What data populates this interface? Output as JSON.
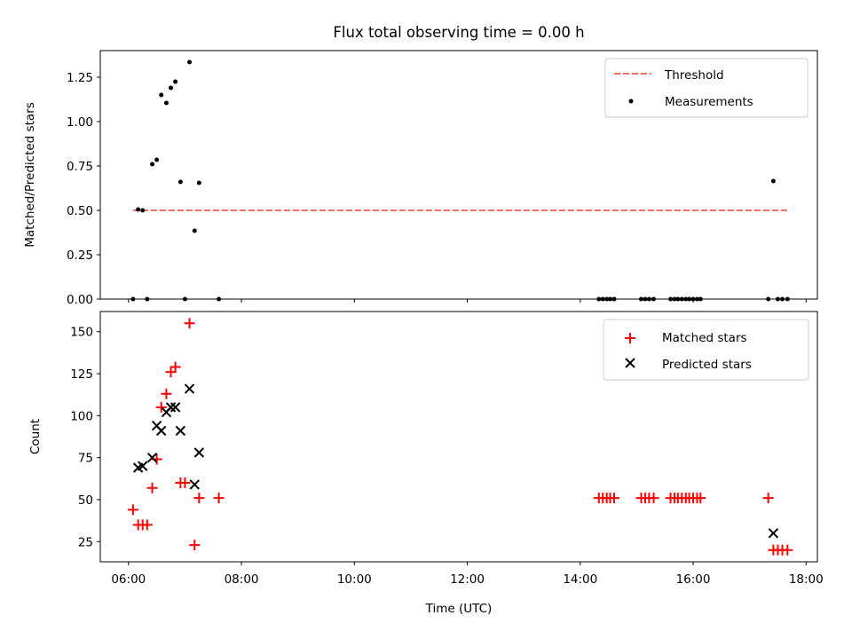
{
  "chart_data": [
    {
      "type": "scatter",
      "panel": "top",
      "title": "Flux total observing time = 0.00 h",
      "xlabel": "",
      "ylabel": "Matched/Predicted stars",
      "xlim": [
        5.5,
        18.2
      ],
      "ylim": [
        0,
        1.4
      ],
      "yticks": [
        0.0,
        0.25,
        0.5,
        0.75,
        1.0,
        1.25
      ],
      "ytick_labels": [
        "0.00",
        "0.25",
        "0.50",
        "0.75",
        "1.00",
        "1.25"
      ],
      "xticks": [
        6,
        8,
        10,
        12,
        14,
        16,
        18
      ],
      "grid": false,
      "legend_position": "upper right",
      "threshold": {
        "name": "Threshold",
        "color": "#ff6b6b",
        "y": 0.5,
        "x": [
          6.08,
          17.67
        ]
      },
      "series": [
        {
          "name": "Measurements",
          "color": "#000000",
          "x": [
            6.08,
            6.17,
            6.25,
            6.33,
            6.42,
            6.5,
            6.58,
            6.67,
            6.75,
            6.83,
            6.92,
            7.0,
            7.08,
            7.17,
            7.25,
            7.6,
            14.33,
            14.4,
            14.47,
            14.53,
            14.6,
            15.08,
            15.15,
            15.22,
            15.3,
            15.6,
            15.67,
            15.73,
            15.8,
            15.87,
            15.93,
            16.0,
            16.07,
            16.13,
            17.33,
            17.42,
            17.5,
            17.58,
            17.67
          ],
          "y": [
            0.0,
            0.505,
            0.5,
            0.0,
            0.76,
            0.785,
            1.15,
            1.105,
            1.19,
            1.225,
            0.66,
            0.0,
            1.335,
            0.385,
            0.655,
            0.0,
            0,
            0,
            0,
            0,
            0,
            0,
            0,
            0,
            0,
            0,
            0,
            0,
            0,
            0,
            0,
            0,
            0,
            0,
            0.0,
            0.665,
            0.0,
            0.0,
            0.0
          ]
        }
      ]
    },
    {
      "type": "scatter",
      "panel": "bottom",
      "title": "",
      "xlabel": "Time (UTC)",
      "ylabel": "Count",
      "xlim": [
        5.5,
        18.2
      ],
      "ylim": [
        13,
        162
      ],
      "yticks": [
        25,
        50,
        75,
        100,
        125,
        150
      ],
      "ytick_labels": [
        "25",
        "50",
        "75",
        "100",
        "125",
        "150"
      ],
      "xticks": [
        6,
        8,
        10,
        12,
        14,
        16,
        18
      ],
      "xtick_labels": [
        "06:00",
        "08:00",
        "10:00",
        "12:00",
        "14:00",
        "16:00",
        "18:00"
      ],
      "grid": false,
      "legend_position": "upper right",
      "series": [
        {
          "name": "Matched stars",
          "marker": "plus",
          "color": "#ff0000",
          "x": [
            6.08,
            6.17,
            6.25,
            6.33,
            6.42,
            6.5,
            6.58,
            6.67,
            6.75,
            6.83,
            6.92,
            7.0,
            7.08,
            7.17,
            7.25,
            7.6,
            14.33,
            14.4,
            14.47,
            14.53,
            14.6,
            15.08,
            15.15,
            15.22,
            15.3,
            15.6,
            15.67,
            15.73,
            15.8,
            15.87,
            15.93,
            16.0,
            16.07,
            16.13,
            17.33,
            17.42,
            17.5,
            17.58,
            17.67
          ],
          "y": [
            44,
            35,
            35,
            35,
            57,
            74,
            105,
            113,
            126,
            129,
            60,
            60,
            155,
            23,
            51,
            51,
            51,
            51,
            51,
            51,
            51,
            51,
            51,
            51,
            51,
            51,
            51,
            51,
            51,
            51,
            51,
            51,
            51,
            51,
            51,
            20,
            20,
            20,
            20
          ]
        },
        {
          "name": "Predicted stars",
          "marker": "x",
          "color": "#000000",
          "x": [
            6.17,
            6.25,
            6.42,
            6.5,
            6.58,
            6.67,
            6.75,
            6.83,
            6.92,
            7.08,
            7.17,
            7.25,
            17.42
          ],
          "y": [
            69,
            70,
            75,
            94,
            91,
            102,
            105,
            105,
            91,
            116,
            59,
            78,
            30
          ]
        }
      ]
    }
  ]
}
